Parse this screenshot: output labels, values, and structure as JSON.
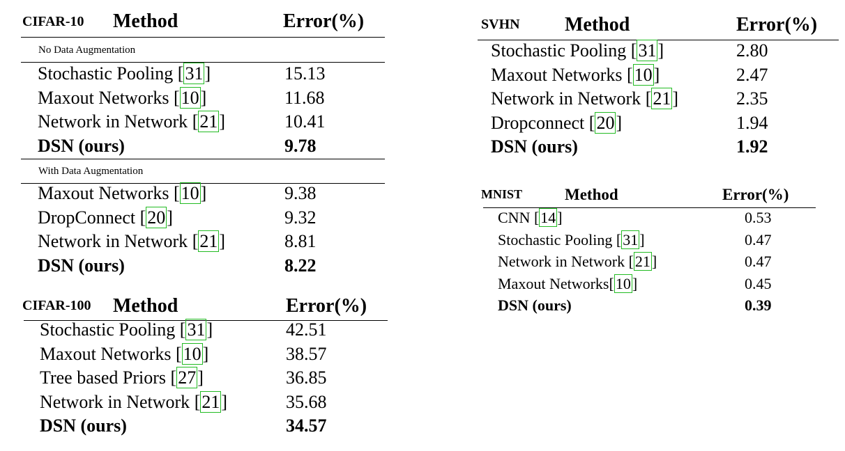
{
  "cifar10": {
    "dataset": "CIFAR-10",
    "col_method": "Method",
    "col_error": "Error(%)",
    "section_noaug": "No Data Augmentation",
    "section_aug": "With Data Augmentation",
    "noaug_rows": [
      {
        "method": "Stochastic Pooling",
        "cite": "31",
        "error": "15.13"
      },
      {
        "method": "Maxout Networks",
        "cite": "10",
        "error": "11.68"
      },
      {
        "method": "Network in Network",
        "cite": "21",
        "error": "10.41"
      },
      {
        "method": "DSN (ours)",
        "cite": "",
        "error": "9.78"
      }
    ],
    "aug_rows": [
      {
        "method": "Maxout Networks",
        "cite": "10",
        "error": "9.38"
      },
      {
        "method": "DropConnect",
        "cite": "20",
        "error": "9.32"
      },
      {
        "method": "Network in Network",
        "cite": "21",
        "error": "8.81"
      },
      {
        "method": "DSN (ours)",
        "cite": "",
        "error": "8.22"
      }
    ]
  },
  "cifar100": {
    "dataset": "CIFAR-100",
    "col_method": "Method",
    "col_error": "Error(%)",
    "rows": [
      {
        "method": "Stochastic Pooling",
        "cite": "31",
        "error": "42.51"
      },
      {
        "method": "Maxout Networks",
        "cite": "10",
        "error": "38.57"
      },
      {
        "method": "Tree based Priors",
        "cite": "27",
        "error": "36.85"
      },
      {
        "method": "Network in Network",
        "cite": "21",
        "error": "35.68"
      },
      {
        "method": "DSN (ours)",
        "cite": "",
        "error": "34.57"
      }
    ]
  },
  "svhn": {
    "dataset": "SVHN",
    "col_method": "Method",
    "col_error": "Error(%)",
    "rows": [
      {
        "method": "Stochastic Pooling",
        "cite": "31",
        "error": "2.80"
      },
      {
        "method": "Maxout Networks",
        "cite": "10",
        "error": "2.47"
      },
      {
        "method": "Network in Network",
        "cite": "21",
        "error": "2.35"
      },
      {
        "method": "Dropconnect",
        "cite": "20",
        "error": "1.94"
      },
      {
        "method": "DSN (ours)",
        "cite": "",
        "error": "1.92"
      }
    ]
  },
  "mnist": {
    "dataset": "MNIST",
    "col_method": "Method",
    "col_error": "Error(%)",
    "rows": [
      {
        "method": "CNN",
        "cite": "14",
        "error": "0.53"
      },
      {
        "method": "Stochastic Pooling",
        "cite": "31",
        "error": "0.47"
      },
      {
        "method": "Network in Network",
        "cite": "21",
        "error": "0.47"
      },
      {
        "method": "Maxout Networks",
        "cite": "10",
        "error": "0.45"
      },
      {
        "method": "DSN (ours)",
        "cite": "",
        "error": "0.39"
      }
    ]
  }
}
